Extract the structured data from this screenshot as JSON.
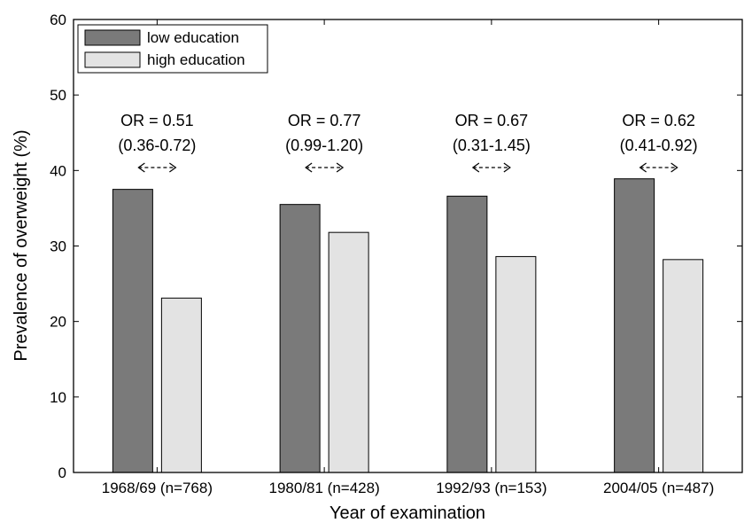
{
  "chart_data": {
    "type": "bar",
    "title": "",
    "xlabel": "Year of examination",
    "ylabel": "Prevalence of overweight (%)",
    "ylim": [
      0,
      60
    ],
    "yticks": [
      "0",
      "10",
      "20",
      "30",
      "40",
      "50",
      "60"
    ],
    "grid": false,
    "legend_position": "top-left",
    "categories": [
      "1968/69 (n=768)",
      "1980/81 (n=428)",
      "1992/93 (n=153)",
      "2004/05 (n=487)"
    ],
    "series": [
      {
        "name": "low education",
        "color": "#7a7a7a",
        "values": [
          37.5,
          35.5,
          36.6,
          38.9
        ]
      },
      {
        "name": "high education",
        "color": "#e3e3e3",
        "values": [
          23.1,
          31.8,
          28.6,
          28.2
        ]
      }
    ],
    "annotations": [
      {
        "line1": "OR = 0.51",
        "line2": "(0.36-0.72)"
      },
      {
        "line1": "OR = 0.77",
        "line2": "(0.99-1.20)"
      },
      {
        "line1": "OR = 0.67",
        "line2": "(0.31-1.45)"
      },
      {
        "line1": "OR = 0.62",
        "line2": "(0.41-0.92)"
      }
    ],
    "annotation_arrow": "↔ between the two bars of each year"
  }
}
